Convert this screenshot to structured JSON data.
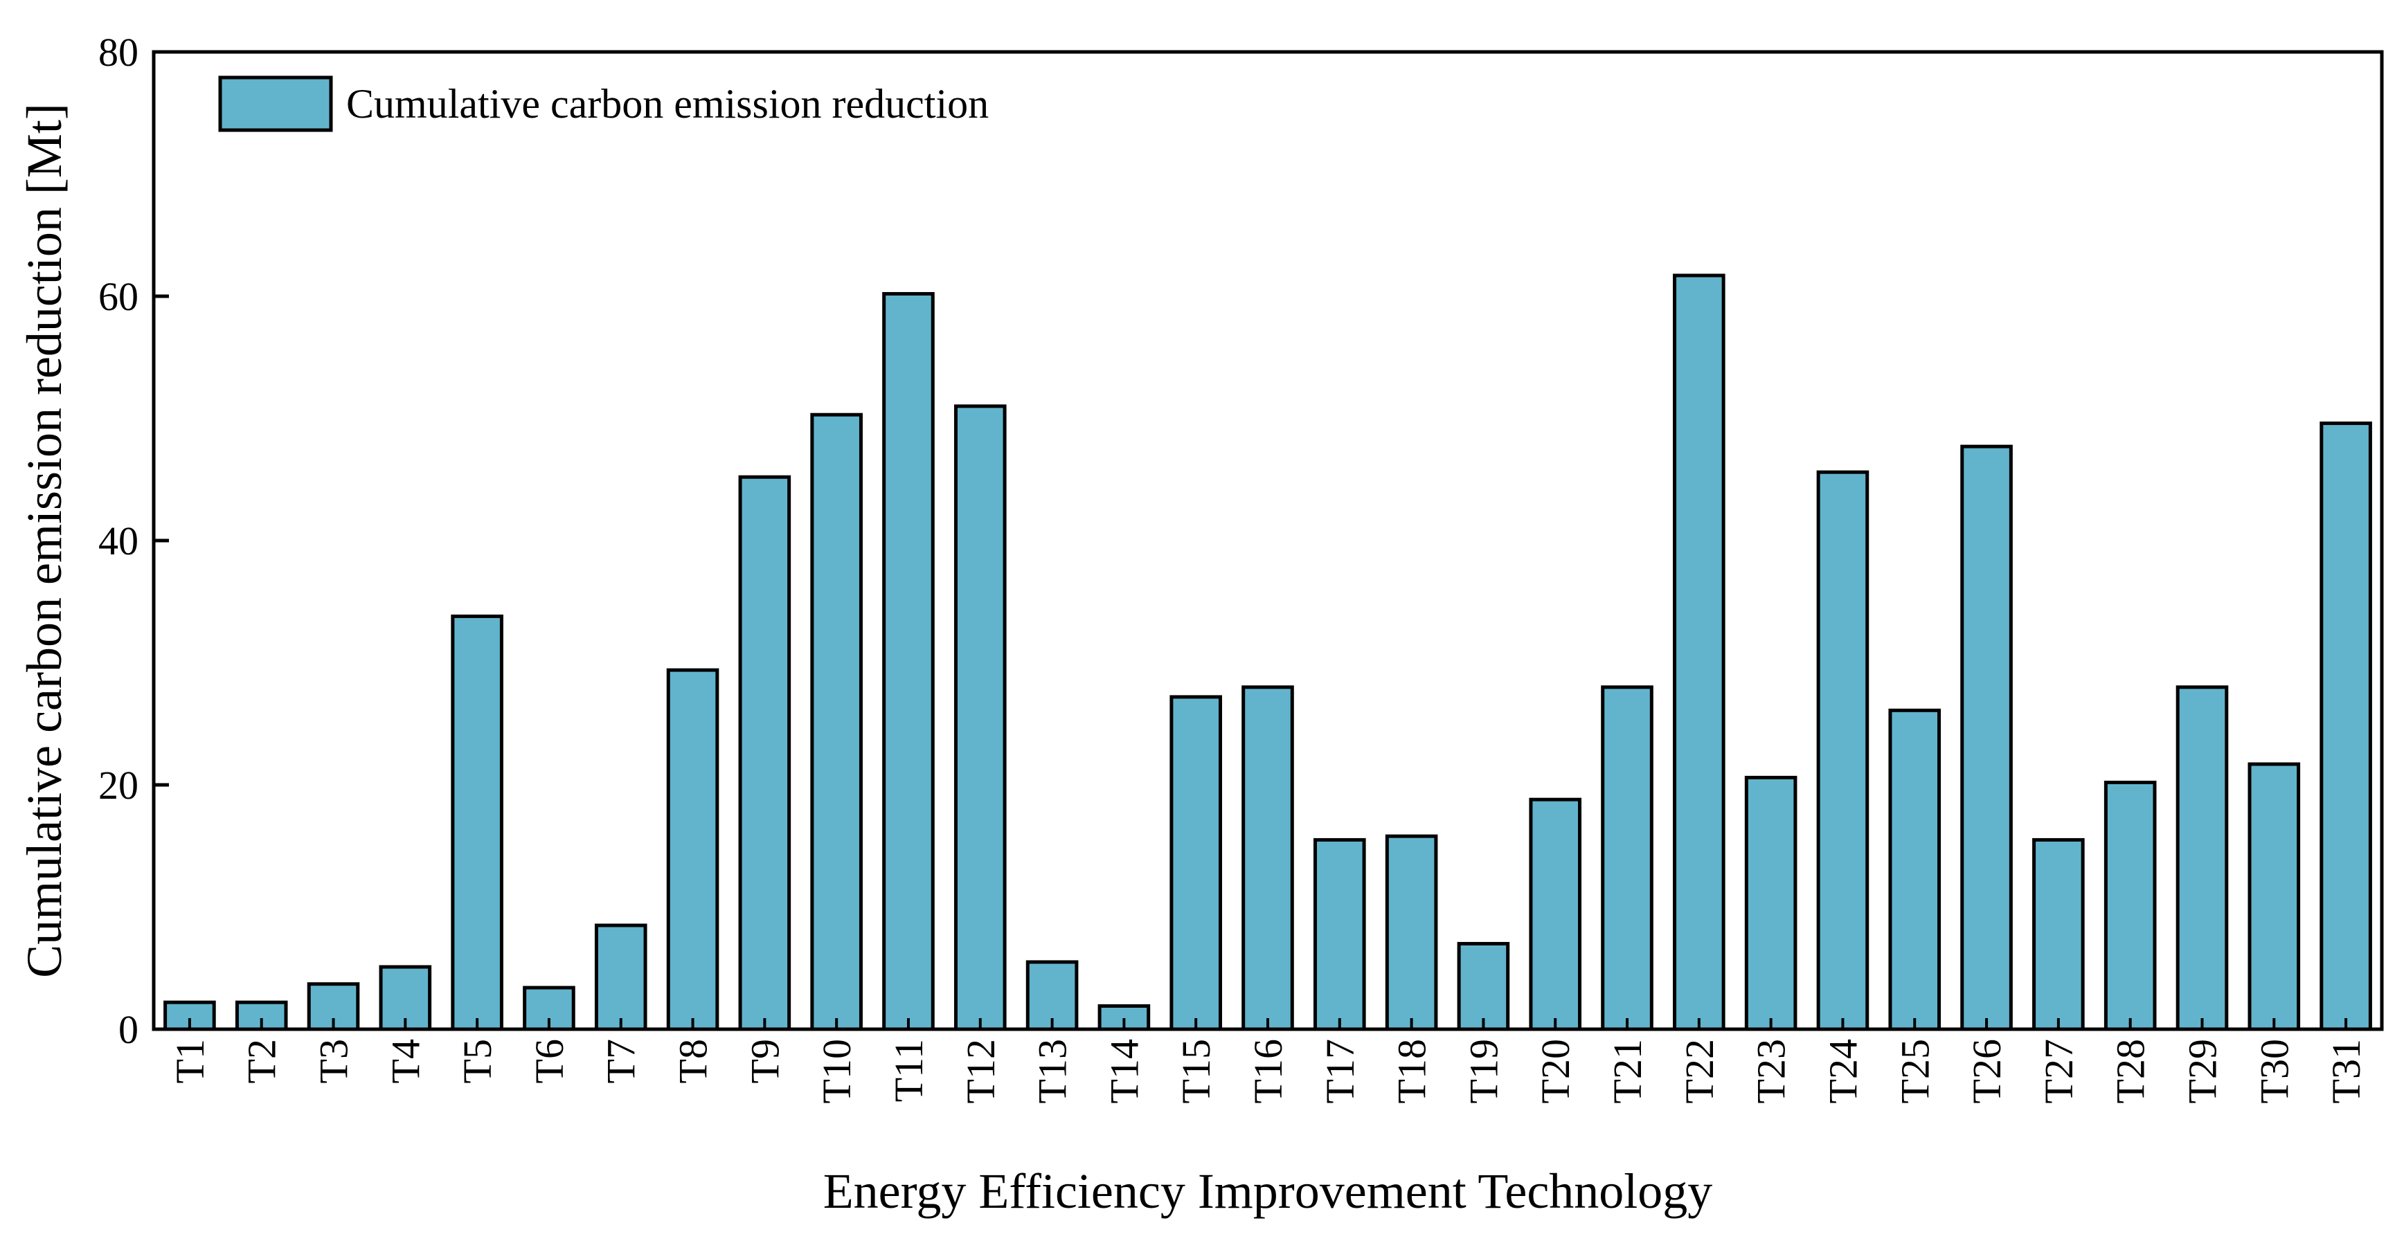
{
  "chart_data": {
    "type": "bar",
    "title": "",
    "xlabel": "Energy Efficiency Improvement Technology",
    "ylabel": "Cumulative carbon emission reduction [Mt]",
    "ylim": [
      0,
      80
    ],
    "yticks": [
      0,
      20,
      40,
      60,
      80
    ],
    "grid": false,
    "legend_position": "top-left",
    "categories": [
      "T1",
      "T2",
      "T3",
      "T4",
      "T5",
      "T6",
      "T7",
      "T8",
      "T9",
      "T10",
      "T11",
      "T12",
      "T13",
      "T14",
      "T15",
      "T16",
      "T17",
      "T18",
      "T19",
      "T20",
      "T21",
      "T22",
      "T23",
      "T24",
      "T25",
      "T26",
      "T27",
      "T28",
      "T29",
      "T30",
      "T31"
    ],
    "series": [
      {
        "name": "Cumulative carbon emission reduction",
        "color": "#62b4cc",
        "values": [
          2.2,
          2.2,
          3.7,
          5.1,
          33.8,
          3.4,
          8.5,
          29.4,
          45.2,
          50.3,
          60.2,
          51.0,
          5.5,
          1.9,
          27.2,
          28.0,
          15.5,
          15.8,
          7.0,
          18.8,
          28.0,
          61.7,
          20.6,
          45.6,
          26.1,
          47.7,
          15.5,
          20.2,
          28.0,
          21.7,
          49.6
        ]
      }
    ]
  }
}
